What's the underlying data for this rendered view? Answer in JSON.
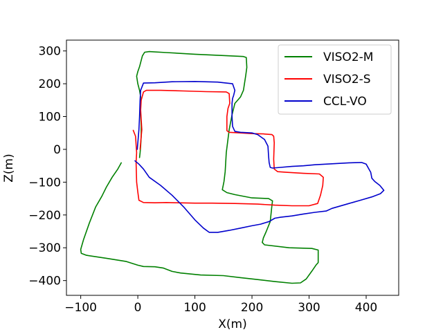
{
  "chart_data": {
    "type": "line",
    "title": "",
    "xlabel": "X(m)",
    "ylabel": "Z(m)",
    "xlim": [
      -125,
      457
    ],
    "ylim": [
      -445,
      333
    ],
    "xticks": [
      -100,
      0,
      100,
      200,
      300,
      400
    ],
    "yticks": [
      -400,
      -300,
      -200,
      -100,
      0,
      100,
      200,
      300
    ],
    "xtick_labels": [
      "−100",
      "0",
      "100",
      "200",
      "300",
      "400"
    ],
    "ytick_labels": [
      "−400",
      "−300",
      "−200",
      "−100",
      "0",
      "100",
      "200",
      "300"
    ],
    "grid": false,
    "legend_position": "top-right",
    "series": [
      {
        "name": "VISO2-M",
        "color": "#008000",
        "points": [
          [
            -29,
            -41
          ],
          [
            -35,
            -60
          ],
          [
            -45,
            -85
          ],
          [
            -55,
            -115
          ],
          [
            -63,
            -143
          ],
          [
            -74,
            -176
          ],
          [
            -85,
            -225
          ],
          [
            -95,
            -275
          ],
          [
            -100,
            -305
          ],
          [
            -99,
            -317
          ],
          [
            -90,
            -323
          ],
          [
            -55,
            -332
          ],
          [
            -20,
            -342
          ],
          [
            0,
            -353
          ],
          [
            10,
            -357
          ],
          [
            30,
            -358
          ],
          [
            45,
            -362
          ],
          [
            60,
            -372
          ],
          [
            75,
            -377
          ],
          [
            110,
            -383
          ],
          [
            150,
            -385
          ],
          [
            180,
            -391
          ],
          [
            210,
            -397
          ],
          [
            240,
            -403
          ],
          [
            270,
            -408
          ],
          [
            285,
            -407
          ],
          [
            295,
            -395
          ],
          [
            305,
            -371
          ],
          [
            312,
            -353
          ],
          [
            316,
            -345
          ],
          [
            316,
            -307
          ],
          [
            305,
            -302
          ],
          [
            265,
            -300
          ],
          [
            222,
            -291
          ],
          [
            218,
            -284
          ],
          [
            220,
            -270
          ],
          [
            225,
            -250
          ],
          [
            232,
            -220
          ],
          [
            235,
            -170
          ],
          [
            236,
            -157
          ],
          [
            229,
            -150
          ],
          [
            200,
            -148
          ],
          [
            170,
            -138
          ],
          [
            156,
            -132
          ],
          [
            148,
            -123
          ],
          [
            151,
            -98
          ],
          [
            153,
            -68
          ],
          [
            155,
            -10
          ],
          [
            160,
            60
          ],
          [
            165,
            105
          ],
          [
            170,
            140
          ],
          [
            180,
            160
          ],
          [
            185,
            180
          ],
          [
            189,
            225
          ],
          [
            191,
            250
          ],
          [
            190,
            280
          ],
          [
            185,
            283
          ],
          [
            150,
            286
          ],
          [
            100,
            290
          ],
          [
            50,
            295
          ],
          [
            20,
            298
          ],
          [
            12,
            296
          ],
          [
            8,
            285
          ],
          [
            5,
            265
          ],
          [
            3,
            252
          ],
          [
            0,
            237
          ],
          [
            -2,
            223
          ],
          [
            0,
            200
          ],
          [
            3,
            180
          ],
          [
            5,
            160
          ],
          [
            4,
            140
          ],
          [
            5,
            110
          ],
          [
            6,
            70
          ],
          [
            6,
            40
          ],
          [
            5,
            10
          ],
          [
            4,
            -10
          ],
          [
            3,
            -25
          ]
        ]
      },
      {
        "name": "VISO2-S",
        "color": "#ff0000",
        "points": [
          [
            -8,
            58
          ],
          [
            -4,
            40
          ],
          [
            -3,
            15
          ],
          [
            -2,
            -10
          ],
          [
            -3,
            -40
          ],
          [
            -2,
            -100
          ],
          [
            0,
            -130
          ],
          [
            2,
            -155
          ],
          [
            10,
            -162
          ],
          [
            30,
            -163
          ],
          [
            50,
            -162
          ],
          [
            70,
            -163
          ],
          [
            100,
            -164
          ],
          [
            130,
            -164
          ],
          [
            170,
            -165
          ],
          [
            210,
            -167
          ],
          [
            240,
            -170
          ],
          [
            270,
            -172
          ],
          [
            300,
            -172
          ],
          [
            315,
            -165
          ],
          [
            320,
            -140
          ],
          [
            324,
            -110
          ],
          [
            325,
            -85
          ],
          [
            318,
            -75
          ],
          [
            290,
            -73
          ],
          [
            260,
            -70
          ],
          [
            245,
            -68
          ],
          [
            239,
            -60
          ],
          [
            238,
            -30
          ],
          [
            239,
            20
          ],
          [
            238,
            40
          ],
          [
            235,
            45
          ],
          [
            220,
            47
          ],
          [
            200,
            48
          ],
          [
            180,
            50
          ],
          [
            160,
            52
          ],
          [
            156,
            57
          ],
          [
            156,
            100
          ],
          [
            158,
            125
          ],
          [
            161,
            140
          ],
          [
            160,
            170
          ],
          [
            155,
            175
          ],
          [
            120,
            176
          ],
          [
            80,
            178
          ],
          [
            40,
            180
          ],
          [
            15,
            180
          ],
          [
            10,
            175
          ],
          [
            6,
            150
          ],
          [
            5,
            120
          ],
          [
            6,
            90
          ],
          [
            7,
            60
          ],
          [
            6,
            40
          ],
          [
            5,
            20
          ],
          [
            4,
            0
          ]
        ]
      },
      {
        "name": "CCL-VO",
        "color": "#0000cc",
        "points": [
          [
            -5,
            -35
          ],
          [
            2,
            -45
          ],
          [
            10,
            -60
          ],
          [
            20,
            -85
          ],
          [
            40,
            -110
          ],
          [
            60,
            -140
          ],
          [
            80,
            -175
          ],
          [
            100,
            -215
          ],
          [
            115,
            -240
          ],
          [
            125,
            -253
          ],
          [
            140,
            -253
          ],
          [
            160,
            -247
          ],
          [
            180,
            -240
          ],
          [
            200,
            -233
          ],
          [
            215,
            -228
          ],
          [
            230,
            -220
          ],
          [
            240,
            -210
          ],
          [
            250,
            -207
          ],
          [
            270,
            -203
          ],
          [
            290,
            -197
          ],
          [
            310,
            -192
          ],
          [
            330,
            -188
          ],
          [
            340,
            -180
          ],
          [
            370,
            -165
          ],
          [
            390,
            -155
          ],
          [
            410,
            -145
          ],
          [
            425,
            -135
          ],
          [
            431,
            -125
          ],
          [
            424,
            -110
          ],
          [
            415,
            -98
          ],
          [
            410,
            -88
          ],
          [
            408,
            -70
          ],
          [
            400,
            -45
          ],
          [
            392,
            -40
          ],
          [
            370,
            -41
          ],
          [
            340,
            -44
          ],
          [
            310,
            -47
          ],
          [
            290,
            -50
          ],
          [
            270,
            -52
          ],
          [
            250,
            -55
          ],
          [
            236,
            -57
          ],
          [
            232,
            -55
          ],
          [
            230,
            -40
          ],
          [
            229,
            -20
          ],
          [
            228,
            10
          ],
          [
            222,
            30
          ],
          [
            210,
            45
          ],
          [
            200,
            50
          ],
          [
            180,
            52
          ],
          [
            170,
            55
          ],
          [
            166,
            70
          ],
          [
            165,
            100
          ],
          [
            165,
            140
          ],
          [
            166,
            155
          ],
          [
            168,
            165
          ],
          [
            170,
            180
          ],
          [
            166,
            200
          ],
          [
            140,
            205
          ],
          [
            100,
            207
          ],
          [
            60,
            206
          ],
          [
            30,
            203
          ],
          [
            10,
            202
          ],
          [
            5,
            180
          ],
          [
            4,
            150
          ],
          [
            3,
            100
          ],
          [
            2,
            60
          ],
          [
            0,
            20
          ],
          [
            -1,
            0
          ]
        ]
      }
    ]
  }
}
